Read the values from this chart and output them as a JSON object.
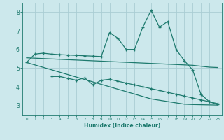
{
  "xlabel": "Humidex (Indice chaleur)",
  "bg_color": "#cce8ec",
  "grid_color": "#aacdd4",
  "line_color": "#1e7a6e",
  "xlim": [
    -0.5,
    23.5
  ],
  "ylim": [
    2.5,
    8.5
  ],
  "yticks": [
    3,
    4,
    5,
    6,
    7,
    8
  ],
  "xticks": [
    0,
    1,
    2,
    3,
    4,
    5,
    6,
    7,
    8,
    9,
    10,
    11,
    12,
    13,
    14,
    15,
    16,
    17,
    18,
    19,
    20,
    21,
    22,
    23
  ],
  "line1_x": [
    0,
    1,
    2,
    3,
    4,
    5,
    6,
    7,
    8,
    9,
    10,
    11,
    12,
    13,
    14,
    15,
    16,
    17,
    18,
    19,
    20,
    21,
    22,
    23
  ],
  "line1_y": [
    5.3,
    5.75,
    5.8,
    5.75,
    5.72,
    5.7,
    5.68,
    5.66,
    5.64,
    5.62,
    6.9,
    6.6,
    6.0,
    6.0,
    7.2,
    8.1,
    7.2,
    7.5,
    6.0,
    5.4,
    4.9,
    3.6,
    3.2,
    3.05
  ],
  "line2_x": [
    0,
    1,
    2,
    3,
    4,
    5,
    6,
    7,
    8,
    9,
    10,
    11,
    12,
    13,
    14,
    15,
    16,
    17,
    18,
    19,
    20,
    21,
    22,
    23
  ],
  "line2_y": [
    5.55,
    5.53,
    5.51,
    5.49,
    5.47,
    5.45,
    5.43,
    5.41,
    5.39,
    5.37,
    5.35,
    5.33,
    5.31,
    5.29,
    5.27,
    5.25,
    5.23,
    5.21,
    5.19,
    5.17,
    5.15,
    5.1,
    5.05,
    5.03
  ],
  "line3_x": [
    3,
    4,
    5,
    6,
    7,
    8,
    9,
    10,
    11,
    12,
    13,
    14,
    15,
    16,
    17,
    18,
    19,
    20,
    21,
    22,
    23
  ],
  "line3_y": [
    4.55,
    4.55,
    4.45,
    4.35,
    4.48,
    4.1,
    4.35,
    4.4,
    4.3,
    4.2,
    4.1,
    4.0,
    3.9,
    3.8,
    3.7,
    3.6,
    3.5,
    3.4,
    3.3,
    3.2,
    3.1
  ],
  "line4_x": [
    0,
    1,
    2,
    3,
    4,
    5,
    6,
    7,
    8,
    9,
    10,
    11,
    12,
    13,
    14,
    15,
    16,
    17,
    18,
    19,
    20,
    21,
    22,
    23
  ],
  "line4_y": [
    5.3,
    5.17,
    5.04,
    4.91,
    4.78,
    4.65,
    4.52,
    4.39,
    4.26,
    4.13,
    4.0,
    3.87,
    3.74,
    3.61,
    3.48,
    3.35,
    3.28,
    3.21,
    3.14,
    3.07,
    3.05,
    3.04,
    3.03,
    3.02
  ]
}
